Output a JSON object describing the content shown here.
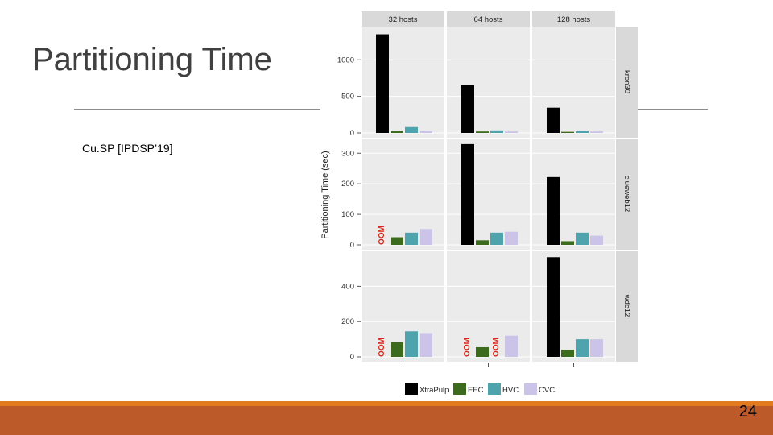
{
  "slide": {
    "title": "Partitioning Time",
    "reference": "Cu.SP [IPDSP’19]",
    "page_number": "24"
  },
  "colors": {
    "XtraPulp": "#000000",
    "EEC": "#3d6b1e",
    "HVC": "#4ea3ad",
    "CVC": "#cbc3e8",
    "oom": "#d6281c",
    "panel_bg": "#ebebeb",
    "strip_bg": "#d9d9d9",
    "footer": "#bd5a2a",
    "footer_band": "#e07b1f"
  },
  "chart_data": {
    "type": "bar",
    "ylabel": "Partitioning Time (sec)",
    "columns": [
      "32 hosts",
      "64 hosts",
      "128 hosts"
    ],
    "series_names": [
      "XtraPulp",
      "EEC",
      "HVC",
      "CVC"
    ],
    "oom_label": "OOM",
    "rows": [
      {
        "name": "kron30",
        "ylim": [
          0,
          1400
        ],
        "ticks": [
          0,
          500,
          1000
        ],
        "values": [
          [
            1350,
            25,
            80,
            30
          ],
          [
            655,
            20,
            35,
            20
          ],
          [
            345,
            15,
            30,
            20
          ]
        ]
      },
      {
        "name": "clueweb12",
        "ylim": [
          0,
          335
        ],
        "ticks": [
          0,
          100,
          200,
          300
        ],
        "values": [
          [
            null,
            25,
            40,
            52
          ],
          [
            330,
            15,
            40,
            43
          ],
          [
            222,
            12,
            40,
            30
          ]
        ]
      },
      {
        "name": "wdc12",
        "ylim": [
          0,
          580
        ],
        "ticks": [
          0,
          200,
          400
        ],
        "values": [
          [
            null,
            85,
            145,
            135
          ],
          [
            null,
            55,
            null,
            120
          ],
          [
            565,
            40,
            100,
            100
          ]
        ]
      }
    ]
  }
}
